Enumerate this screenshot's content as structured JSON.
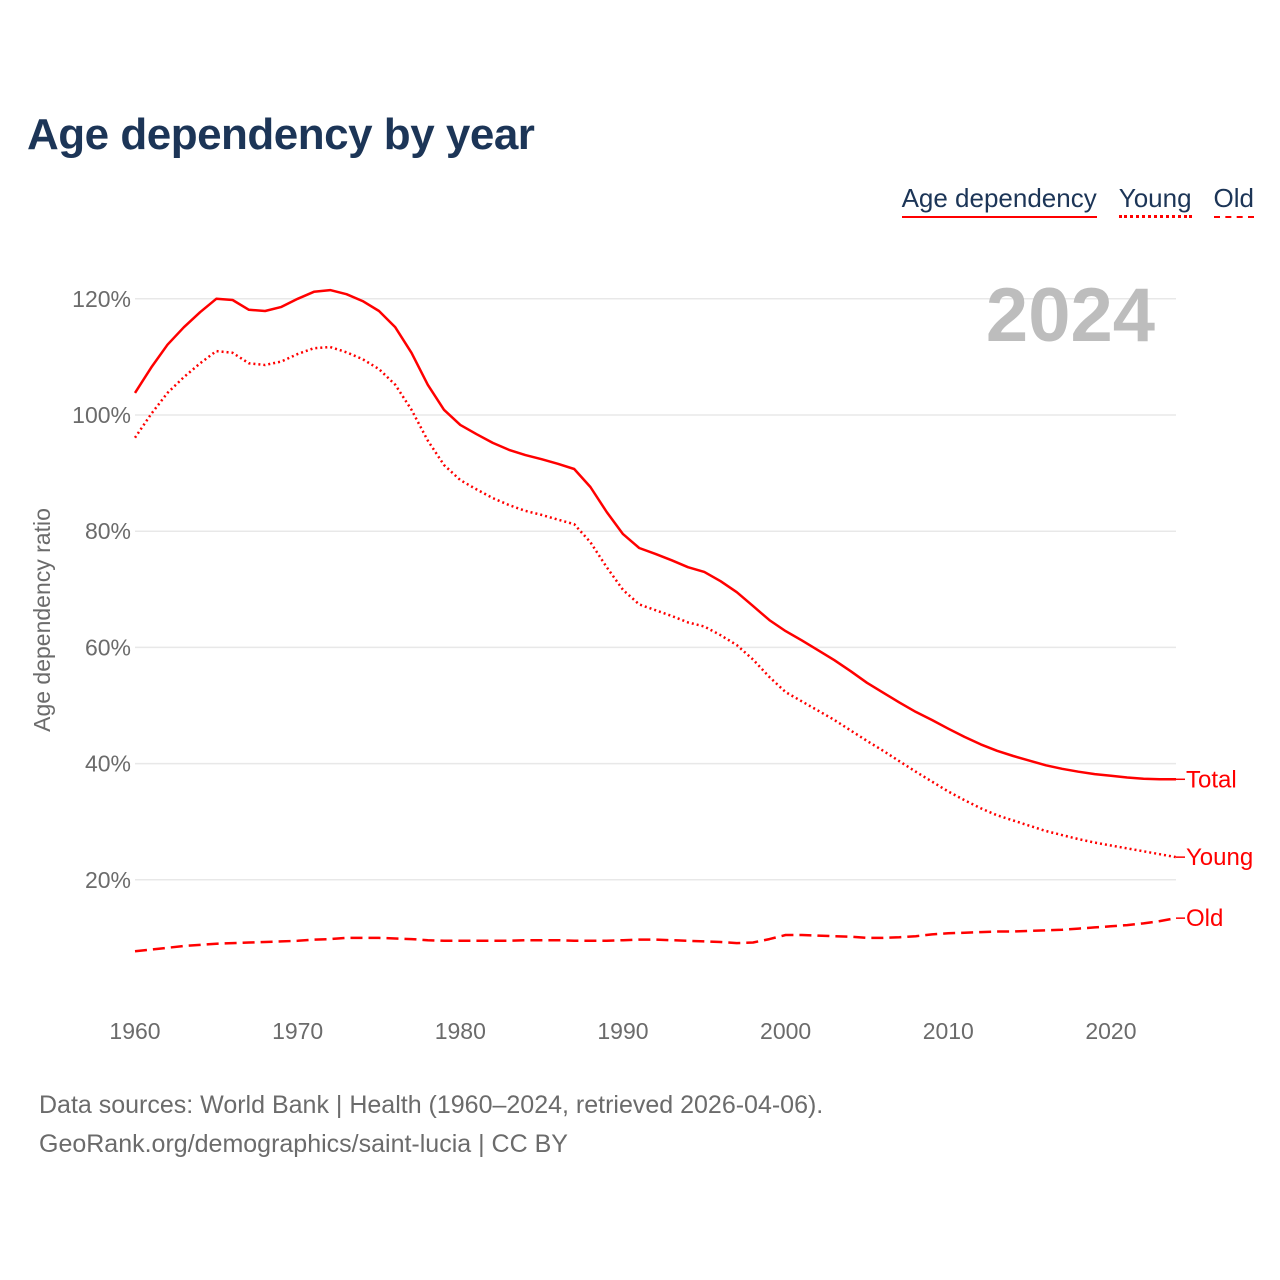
{
  "chart_data": {
    "type": "line",
    "title": "Age dependency by year",
    "xlabel": "",
    "ylabel": "Age dependency ratio",
    "watermark_year": "2024",
    "xlim": [
      1960,
      2024
    ],
    "ylim": [
      0,
      125
    ],
    "x_ticks": [
      1960,
      1970,
      1980,
      1990,
      2000,
      2010,
      2020
    ],
    "x_tick_labels": [
      "1960",
      "1970",
      "1980",
      "1990",
      "2000",
      "2010",
      "2020"
    ],
    "y_ticks": [
      20,
      40,
      60,
      80,
      100,
      120
    ],
    "y_tick_labels": [
      "20%",
      "40%",
      "60%",
      "80%",
      "100%",
      "120%"
    ],
    "grid": true,
    "legend_placement": "top-right",
    "legend": [
      "Age dependency",
      "Young",
      "Old"
    ],
    "x_start": 1960,
    "series": [
      {
        "name": "Total",
        "end_label": "Total",
        "style": "solid",
        "color": "#ff0000",
        "values": [
          103.8,
          108.2,
          112.1,
          115.1,
          117.7,
          120.0,
          119.8,
          118.1,
          117.9,
          118.6,
          120.0,
          121.2,
          121.5,
          120.8,
          119.6,
          117.9,
          115.1,
          110.7,
          105.2,
          100.9,
          98.3,
          96.7,
          95.2,
          94.0,
          93.1,
          92.4,
          91.6,
          90.7,
          87.6,
          83.3,
          79.5,
          77.1,
          76.1,
          75.0,
          73.8,
          73.0,
          71.4,
          69.5,
          67.1,
          64.7,
          62.8,
          61.2,
          59.5,
          57.8,
          55.9,
          53.9,
          52.2,
          50.5,
          48.9,
          47.5,
          46.0,
          44.6,
          43.3,
          42.2,
          41.3,
          40.5,
          39.7,
          39.1,
          38.6,
          38.2,
          37.9,
          37.6,
          37.4,
          37.3,
          37.3
        ]
      },
      {
        "name": "Young",
        "end_label": "Young",
        "style": "dotted",
        "color": "#ff0000",
        "values": [
          96.1,
          100.2,
          103.8,
          106.5,
          108.9,
          111.0,
          110.7,
          108.9,
          108.6,
          109.2,
          110.5,
          111.5,
          111.7,
          110.8,
          109.6,
          107.9,
          105.2,
          100.9,
          95.6,
          91.4,
          88.8,
          87.2,
          85.7,
          84.5,
          83.5,
          82.8,
          82.0,
          81.2,
          78.1,
          73.8,
          69.9,
          67.4,
          66.4,
          65.4,
          64.3,
          63.6,
          62.1,
          60.4,
          57.9,
          54.9,
          52.3,
          50.7,
          49.1,
          47.5,
          45.7,
          43.9,
          42.2,
          40.4,
          38.6,
          36.9,
          35.2,
          33.7,
          32.3,
          31.1,
          30.2,
          29.3,
          28.4,
          27.7,
          27.0,
          26.4,
          25.9,
          25.4,
          24.9,
          24.4,
          23.9
        ]
      },
      {
        "name": "Old",
        "end_label": "Old",
        "style": "dashed",
        "color": "#ff0000",
        "values": [
          7.7,
          8.0,
          8.3,
          8.6,
          8.8,
          9.0,
          9.1,
          9.2,
          9.3,
          9.4,
          9.5,
          9.7,
          9.8,
          10.0,
          10.0,
          10.0,
          9.9,
          9.8,
          9.6,
          9.5,
          9.5,
          9.5,
          9.5,
          9.5,
          9.6,
          9.6,
          9.6,
          9.5,
          9.5,
          9.5,
          9.6,
          9.7,
          9.7,
          9.6,
          9.5,
          9.4,
          9.3,
          9.1,
          9.2,
          9.8,
          10.5,
          10.5,
          10.4,
          10.3,
          10.2,
          10.0,
          10.0,
          10.1,
          10.3,
          10.6,
          10.8,
          10.9,
          11.0,
          11.1,
          11.1,
          11.2,
          11.3,
          11.4,
          11.6,
          11.8,
          12.0,
          12.2,
          12.5,
          12.9,
          13.4
        ]
      }
    ]
  },
  "footer": {
    "line1": "Data sources: World Bank | Health (1960–2024, retrieved 2026-04-06).",
    "line2": "GeoRank.org/demographics/saint-lucia | CC BY"
  }
}
